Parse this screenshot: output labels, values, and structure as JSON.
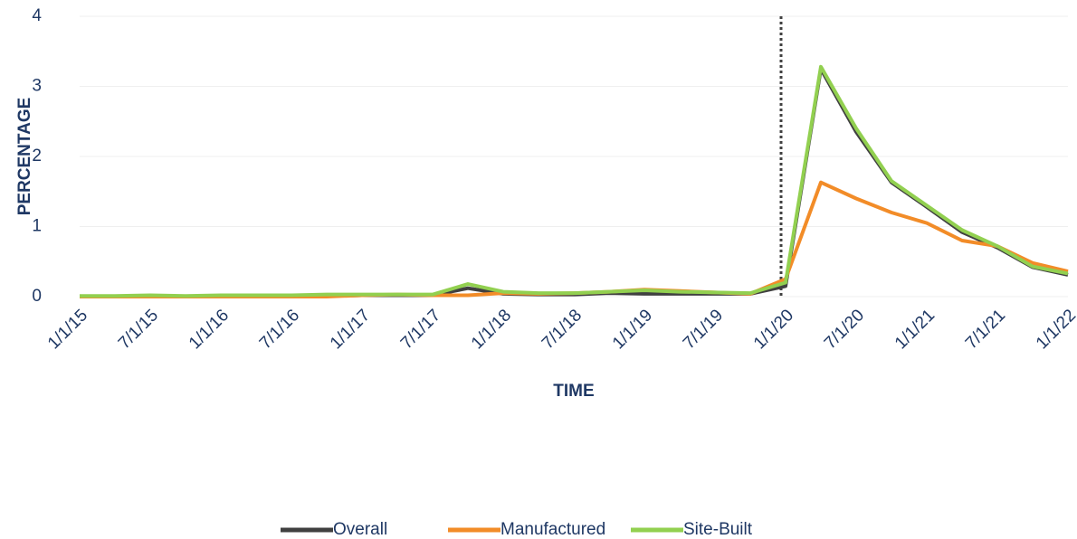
{
  "chart_data": {
    "type": "line",
    "y_label": "PERCENTAGE",
    "x_label": "TIME",
    "categories": [
      "1/1/15",
      null,
      "7/1/15",
      null,
      "1/1/16",
      null,
      "7/1/16",
      null,
      "1/1/17",
      null,
      "7/1/17",
      null,
      "1/1/18",
      null,
      "7/1/18",
      null,
      "1/1/19",
      null,
      "7/1/19",
      null,
      "1/1/20",
      null,
      "7/1/20",
      null,
      "1/1/21",
      null,
      "7/1/21",
      null,
      "1/1/22"
    ],
    "series": [
      {
        "name": "Overall",
        "color": "#404040",
        "values": [
          0,
          0,
          0.01,
          0,
          0.01,
          0.01,
          0.01,
          0.01,
          0.02,
          0.02,
          0.02,
          0.12,
          0.04,
          0.03,
          0.03,
          0.05,
          0.04,
          0.04,
          0.04,
          0.04,
          0.15,
          3.25,
          2.35,
          1.63,
          1.28,
          0.92,
          0.7,
          0.42,
          0.31
        ]
      },
      {
        "name": "Manufactured",
        "color": "#f28c28",
        "values": [
          0,
          0,
          0,
          0,
          0,
          0,
          0,
          0,
          0.02,
          0.03,
          0.02,
          0.02,
          0.05,
          0.04,
          0.05,
          0.07,
          0.1,
          0.08,
          0.06,
          0.04,
          0.25,
          1.63,
          1.4,
          1.2,
          1.05,
          0.8,
          0.72,
          0.48,
          0.36
        ]
      },
      {
        "name": "Site-Built",
        "color": "#92d050",
        "values": [
          0.01,
          0.01,
          0.02,
          0.01,
          0.02,
          0.02,
          0.02,
          0.03,
          0.03,
          0.03,
          0.03,
          0.18,
          0.07,
          0.05,
          0.05,
          0.07,
          0.09,
          0.07,
          0.06,
          0.05,
          0.2,
          3.28,
          2.4,
          1.65,
          1.3,
          0.95,
          0.72,
          0.43,
          0.33
        ]
      }
    ],
    "ylim": [
      0,
      4
    ],
    "yticks": [
      0,
      1,
      2,
      3,
      4
    ],
    "grid": true,
    "reference_line_x": "1/1/20",
    "legend": "bottom"
  }
}
